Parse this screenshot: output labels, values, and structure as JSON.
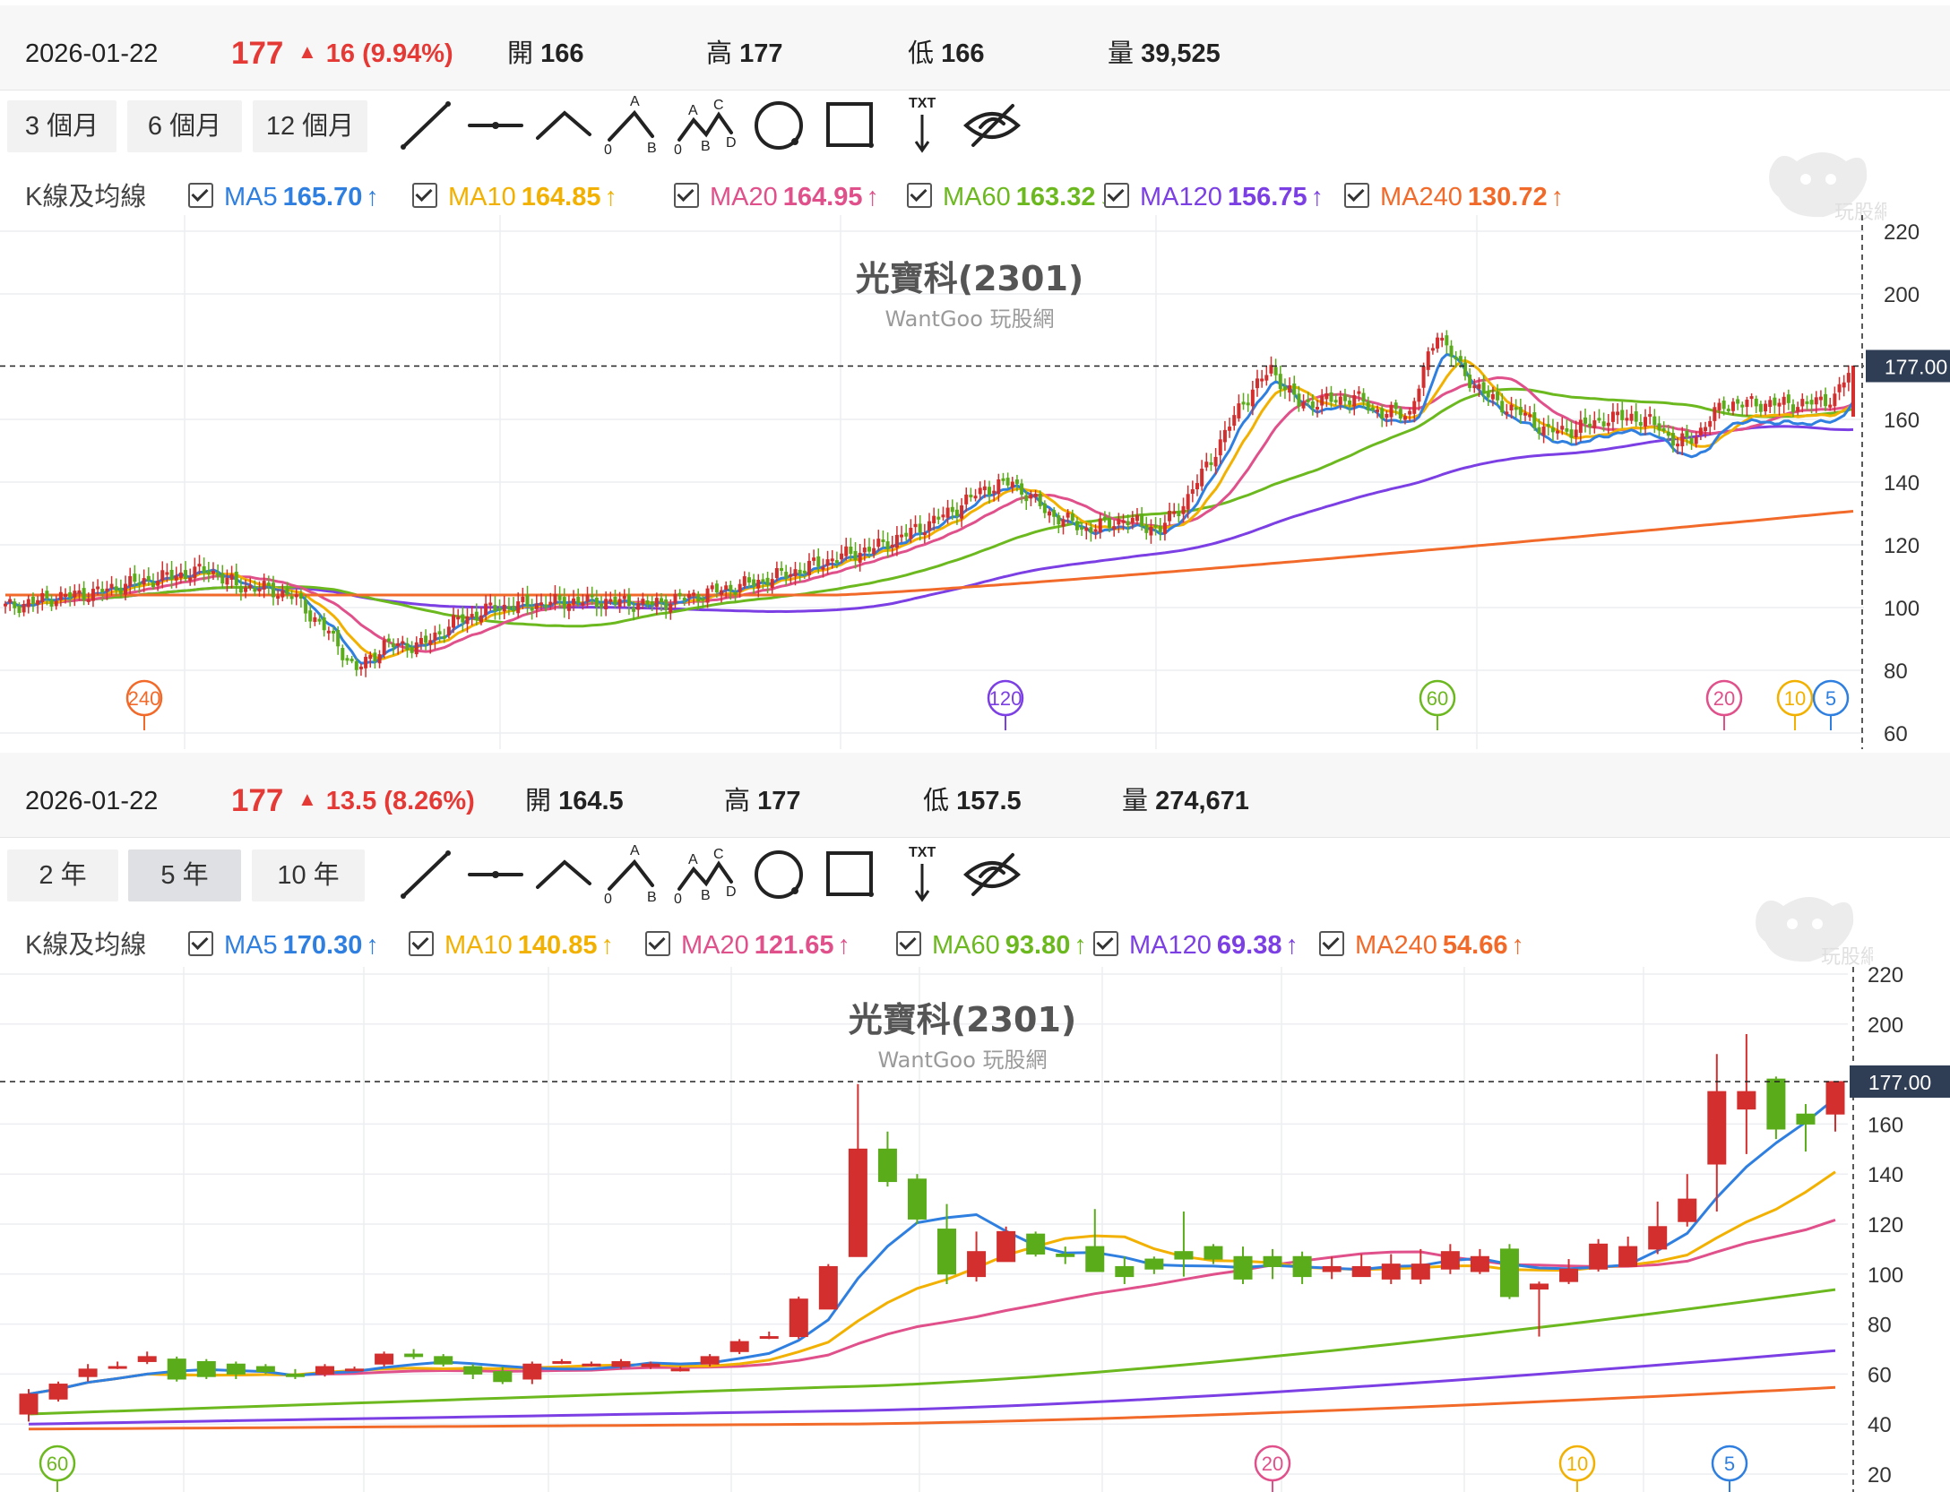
{
  "stock_name": "光寶科(2301)",
  "watermark": "WantGoo 玩股網",
  "logo_text": "玩股網",
  "price_tag": "177.00",
  "panels": [
    {
      "quote": {
        "date": "2026-01-22",
        "price": "177",
        "change": "16 (9.94%)",
        "open_label": "開",
        "open": "166",
        "high_label": "高",
        "high": "177",
        "low_label": "低",
        "low": "166",
        "volume_label": "量",
        "volume": "39,525"
      },
      "ranges": [
        {
          "label": "3 個月",
          "selected": false
        },
        {
          "label": "6 個月",
          "selected": false
        },
        {
          "label": "12 個月",
          "selected": false
        }
      ],
      "ma_header": "K線及均線",
      "ma": [
        {
          "name": "MA5",
          "value": "165.70",
          "dir": "↑",
          "color": "#2f7fe0"
        },
        {
          "name": "MA10",
          "value": "164.85",
          "dir": "↑",
          "color": "#f2b100"
        },
        {
          "name": "MA20",
          "value": "164.95",
          "dir": "↑",
          "color": "#e0508a"
        },
        {
          "name": "MA60",
          "value": "163.32",
          "dir": "↓",
          "color": "#6cb81f"
        },
        {
          "name": "MA120",
          "value": "156.75",
          "dir": "↑",
          "color": "#7b3fe4"
        },
        {
          "name": "MA240",
          "value": "130.72",
          "dir": "↑",
          "color": "#f26a2a"
        }
      ]
    },
    {
      "quote": {
        "date": "2026-01-22",
        "price": "177",
        "change": "13.5 (8.26%)",
        "open_label": "開",
        "open": "164.5",
        "high_label": "高",
        "high": "177",
        "low_label": "低",
        "low": "157.5",
        "volume_label": "量",
        "volume": "274,671"
      },
      "ranges": [
        {
          "label": "2 年",
          "selected": false
        },
        {
          "label": "5 年",
          "selected": true
        },
        {
          "label": "10 年",
          "selected": false
        }
      ],
      "ma_header": "K線及均線",
      "ma": [
        {
          "name": "MA5",
          "value": "170.30",
          "dir": "↑",
          "color": "#2f7fe0"
        },
        {
          "name": "MA10",
          "value": "140.85",
          "dir": "↑",
          "color": "#f2b100"
        },
        {
          "name": "MA20",
          "value": "121.65",
          "dir": "↑",
          "color": "#e0508a"
        },
        {
          "name": "MA60",
          "value": "93.80",
          "dir": "↑",
          "color": "#6cb81f"
        },
        {
          "name": "MA120",
          "value": "69.38",
          "dir": "↑",
          "color": "#7b3fe4"
        },
        {
          "name": "MA240",
          "value": "54.66",
          "dir": "↑",
          "color": "#f26a2a"
        }
      ]
    }
  ],
  "tools": [
    "line-tool-icon",
    "horizontal-line-tool-icon",
    "angle-tool-icon",
    "abc-pattern-tool-icon",
    "abcd-pattern-tool-icon",
    "circle-tool-icon",
    "rectangle-tool-icon",
    "text-arrow-tool-icon",
    "hide-drawings-icon"
  ],
  "tool_text": {
    "txt": "TXT",
    "a": "A",
    "b": "B",
    "c": "C",
    "d": "D",
    "zero": "0"
  },
  "colors": {
    "up": "#d32f2f",
    "down": "#5aac1a",
    "price_up": "#e53935"
  },
  "chart_data": [
    {
      "type": "candlestick",
      "title": "光寶科(2301)",
      "period": "daily",
      "ylim": [
        60,
        220
      ],
      "yticks": [
        220,
        200,
        160,
        140,
        120,
        100,
        80,
        60
      ],
      "last_price": 177,
      "approx_path": [
        [
          0,
          100
        ],
        [
          10,
          103
        ],
        [
          20,
          105
        ],
        [
          28,
          108
        ],
        [
          36,
          110
        ],
        [
          44,
          112
        ],
        [
          50,
          107
        ],
        [
          56,
          106
        ],
        [
          62,
          104
        ],
        [
          70,
          92
        ],
        [
          76,
          80
        ],
        [
          82,
          88
        ],
        [
          90,
          88
        ],
        [
          98,
          96
        ],
        [
          106,
          100
        ],
        [
          114,
          101
        ],
        [
          122,
          102
        ],
        [
          130,
          102
        ],
        [
          140,
          101
        ],
        [
          150,
          104
        ],
        [
          162,
          108
        ],
        [
          172,
          112
        ],
        [
          180,
          116
        ],
        [
          188,
          119
        ],
        [
          196,
          124
        ],
        [
          204,
          130
        ],
        [
          212,
          138
        ],
        [
          218,
          140
        ],
        [
          226,
          130
        ],
        [
          234,
          125
        ],
        [
          242,
          128
        ],
        [
          250,
          125
        ],
        [
          256,
          135
        ],
        [
          262,
          150
        ],
        [
          268,
          166
        ],
        [
          274,
          176
        ],
        [
          280,
          165
        ],
        [
          286,
          166
        ],
        [
          292,
          167
        ],
        [
          298,
          162
        ],
        [
          304,
          162
        ],
        [
          310,
          188
        ],
        [
          316,
          174
        ],
        [
          322,
          166
        ],
        [
          328,
          162
        ],
        [
          334,
          156
        ],
        [
          340,
          157
        ],
        [
          346,
          160
        ],
        [
          352,
          161
        ],
        [
          358,
          158
        ],
        [
          362,
          152
        ],
        [
          366,
          155
        ],
        [
          372,
          165
        ],
        [
          380,
          165
        ],
        [
          390,
          165
        ],
        [
          396,
          167
        ],
        [
          400,
          177
        ]
      ],
      "ma_lines": [
        {
          "name": "MA5",
          "end": 165.7
        },
        {
          "name": "MA10",
          "end": 164.85
        },
        {
          "name": "MA20",
          "end": 164.95
        },
        {
          "name": "MA60",
          "end": 163.32
        },
        {
          "name": "MA120",
          "end": 156.75
        },
        {
          "name": "MA240",
          "end": 130.72
        }
      ],
      "ma_markers": [
        {
          "label": "240"
        },
        {
          "label": "120"
        },
        {
          "label": "60"
        },
        {
          "label": "20"
        },
        {
          "label": "10"
        },
        {
          "label": "5"
        }
      ]
    },
    {
      "type": "candlestick",
      "title": "光寶科(2301)",
      "period": "weekly",
      "ylim": [
        20,
        220
      ],
      "yticks": [
        220,
        200,
        160,
        140,
        120,
        100,
        80,
        60,
        40,
        20
      ],
      "last_price": 177,
      "candles": [
        [
          44,
          52,
          41,
          54
        ],
        [
          50,
          56,
          49,
          57
        ],
        [
          59,
          62,
          57,
          64
        ],
        [
          63,
          63,
          62,
          65
        ],
        [
          65,
          67,
          64,
          69
        ],
        [
          66,
          58,
          57,
          67
        ],
        [
          65,
          59,
          58,
          66
        ],
        [
          64,
          60,
          58,
          65
        ],
        [
          63,
          61,
          60,
          64
        ],
        [
          60,
          59,
          58,
          62
        ],
        [
          60,
          63,
          59,
          64
        ],
        [
          62,
          62,
          62,
          63
        ],
        [
          64,
          68,
          63,
          69
        ],
        [
          68,
          67,
          66,
          70
        ],
        [
          67,
          64,
          63,
          68
        ],
        [
          63,
          60,
          58,
          64
        ],
        [
          61,
          57,
          56,
          63
        ],
        [
          58,
          64,
          56,
          65
        ],
        [
          65,
          65,
          64,
          66
        ],
        [
          64,
          64,
          63,
          65
        ],
        [
          63,
          65,
          62,
          66
        ],
        [
          63,
          64,
          62,
          65
        ],
        [
          62,
          62,
          61,
          63
        ],
        [
          64,
          67,
          63,
          68
        ],
        [
          69,
          73,
          68,
          74
        ],
        [
          75,
          75,
          74,
          77
        ],
        [
          75,
          90,
          74,
          91
        ],
        [
          86,
          103,
          86,
          104
        ],
        [
          107,
          150,
          107,
          176
        ],
        [
          150,
          137,
          135,
          157
        ],
        [
          138,
          122,
          120,
          140
        ],
        [
          118,
          100,
          96,
          128
        ],
        [
          99,
          109,
          97,
          117
        ],
        [
          105,
          117,
          105,
          119
        ],
        [
          116,
          108,
          107,
          117
        ],
        [
          108,
          107,
          104,
          111
        ],
        [
          111,
          101,
          101,
          126
        ],
        [
          103,
          99,
          96,
          107
        ],
        [
          106,
          102,
          100,
          107
        ],
        [
          109,
          106,
          99,
          125
        ],
        [
          111,
          106,
          104,
          112
        ],
        [
          107,
          98,
          96,
          111
        ],
        [
          107,
          103,
          98,
          110
        ],
        [
          107,
          99,
          96,
          109
        ],
        [
          101,
          103,
          98,
          107
        ],
        [
          99,
          103,
          99,
          108
        ],
        [
          98,
          104,
          96,
          108
        ],
        [
          98,
          104,
          96,
          110
        ],
        [
          102,
          109,
          100,
          112
        ],
        [
          101,
          107,
          100,
          110
        ],
        [
          110,
          91,
          90,
          112
        ],
        [
          94,
          96,
          75,
          97
        ],
        [
          97,
          102,
          96,
          106
        ],
        [
          102,
          112,
          101,
          114
        ],
        [
          103,
          111,
          103,
          115
        ],
        [
          110,
          119,
          108,
          129
        ],
        [
          121,
          130,
          119,
          140
        ],
        [
          144,
          173,
          125,
          188
        ],
        [
          166,
          173,
          148,
          196
        ],
        [
          178,
          158,
          154,
          179
        ],
        [
          164,
          160,
          149,
          168
        ],
        [
          164,
          177,
          157,
          177
        ]
      ],
      "ma_lines": [
        {
          "name": "MA5",
          "end": 170.3
        },
        {
          "name": "MA10",
          "end": 140.85
        },
        {
          "name": "MA20",
          "end": 121.65
        },
        {
          "name": "MA60",
          "end": 93.8
        },
        {
          "name": "MA120",
          "end": 69.38
        },
        {
          "name": "MA240",
          "end": 54.66
        }
      ],
      "ma_markers": [
        {
          "label": "60"
        },
        {
          "label": "20"
        },
        {
          "label": "10"
        },
        {
          "label": "5"
        }
      ]
    }
  ]
}
